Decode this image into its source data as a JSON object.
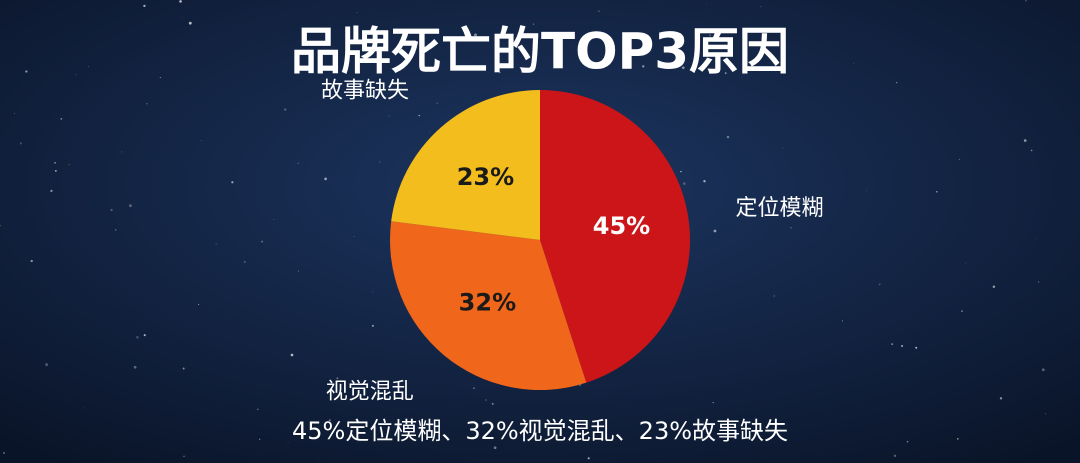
{
  "chart_data": {
    "type": "pie",
    "title": "品牌死亡的TOP3原因",
    "subtitle": "45%定位模糊、32%视觉混乱、23%故事缺失",
    "categories": [
      "定位模糊",
      "视觉混乱",
      "故事缺失"
    ],
    "values": [
      45,
      32,
      23
    ],
    "value_labels": [
      "45%",
      "32%",
      "23%"
    ],
    "colors": [
      "#cc1518",
      "#f0661a",
      "#f2bd1d"
    ]
  }
}
